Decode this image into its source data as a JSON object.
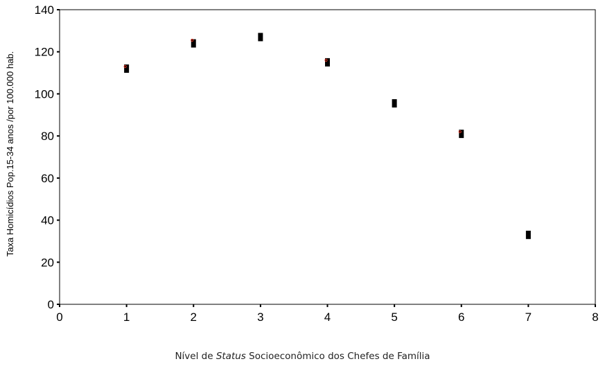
{
  "chart_data": {
    "type": "scatter",
    "title": "",
    "ylabel": "Taxa Homicídios Pop.15-34 anos /por 100.000 hab.",
    "xlabel_parts": [
      "Nível de ",
      "Status",
      " Socioeconômico dos Chefes de Família"
    ],
    "xlim": [
      0,
      8
    ],
    "ylim": [
      0,
      140
    ],
    "xticks": [
      "0",
      "1",
      "2",
      "3",
      "4",
      "5",
      "6",
      "7",
      "8"
    ],
    "yticks": [
      "0",
      "20",
      "40",
      "60",
      "80",
      "100",
      "120",
      "140"
    ],
    "grid": false,
    "series": [
      {
        "marker": "square",
        "color": "#000000",
        "points": [
          {
            "x": 1,
            "y": 112
          },
          {
            "x": 2,
            "y": 124
          },
          {
            "x": 3,
            "y": 127
          },
          {
            "x": 4,
            "y": 115
          },
          {
            "x": 5,
            "y": 95.5
          },
          {
            "x": 6,
            "y": 81
          },
          {
            "x": 7,
            "y": 33
          }
        ]
      },
      {
        "marker": "small-circle",
        "color": "#e0301e",
        "points": [
          {
            "x": 1,
            "y": 113
          },
          {
            "x": 2,
            "y": 125.5
          },
          {
            "x": 4,
            "y": 116
          },
          {
            "x": 6,
            "y": 82
          }
        ]
      }
    ]
  }
}
